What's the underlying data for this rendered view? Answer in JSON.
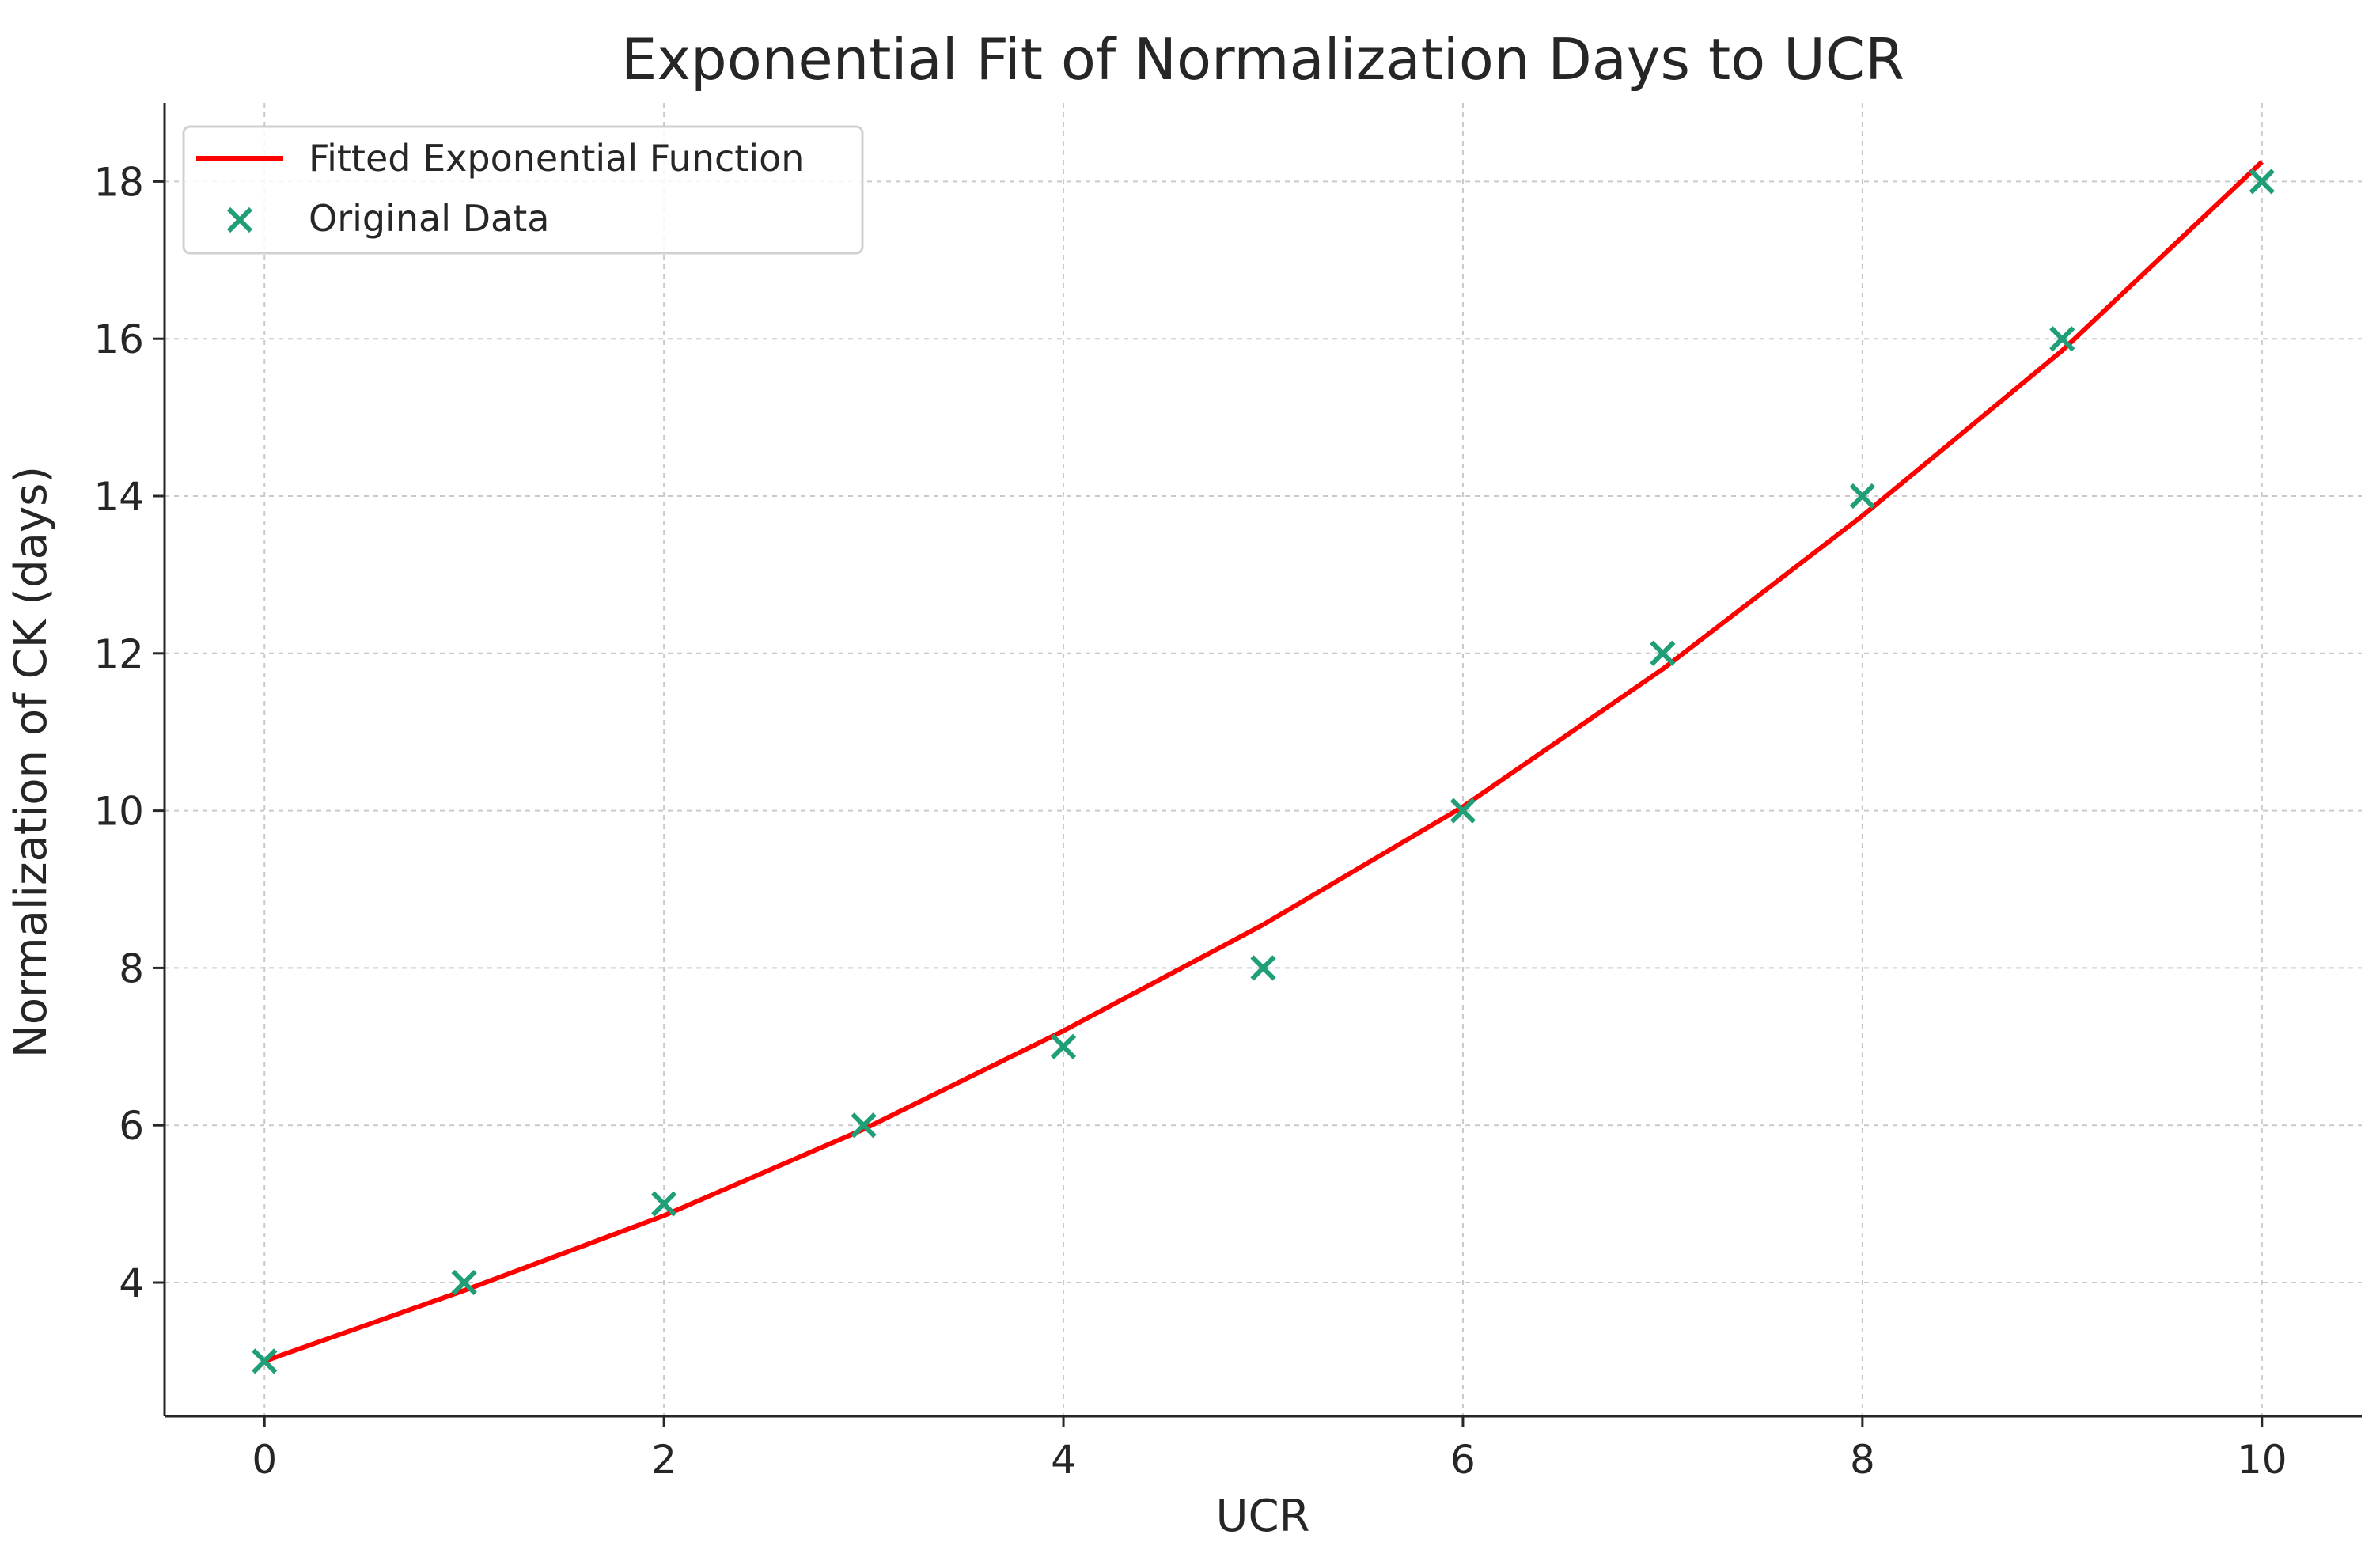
{
  "chart_data": {
    "type": "scatter",
    "title": "Exponential Fit of Normalization Days to UCR",
    "xlabel": "UCR",
    "ylabel": "Normalization of CK (days)",
    "xlim": [
      -0.5,
      10.5
    ],
    "ylim": [
      2.3,
      19.0
    ],
    "xticks": [
      0,
      2,
      4,
      6,
      8,
      10
    ],
    "yticks": [
      4,
      6,
      8,
      10,
      12,
      14,
      16,
      18
    ],
    "grid": true,
    "legend_position": "top-left",
    "series": [
      {
        "name": "Fitted Exponential Function",
        "kind": "line",
        "color": "#ff0000",
        "x": [
          0,
          1,
          2,
          3,
          4,
          5,
          6,
          7,
          8,
          9,
          10
        ],
        "y": [
          3.0,
          3.9,
          4.85,
          5.95,
          7.2,
          8.55,
          10.05,
          11.8,
          13.75,
          15.85,
          18.25
        ]
      },
      {
        "name": "Original Data",
        "kind": "scatter",
        "marker": "x",
        "color": "#1f9e77",
        "x": [
          0,
          1,
          2,
          3,
          4,
          5,
          6,
          7,
          8,
          9,
          10
        ],
        "y": [
          3,
          4,
          5,
          6,
          7,
          8,
          10,
          12,
          14,
          16,
          18
        ]
      }
    ]
  }
}
